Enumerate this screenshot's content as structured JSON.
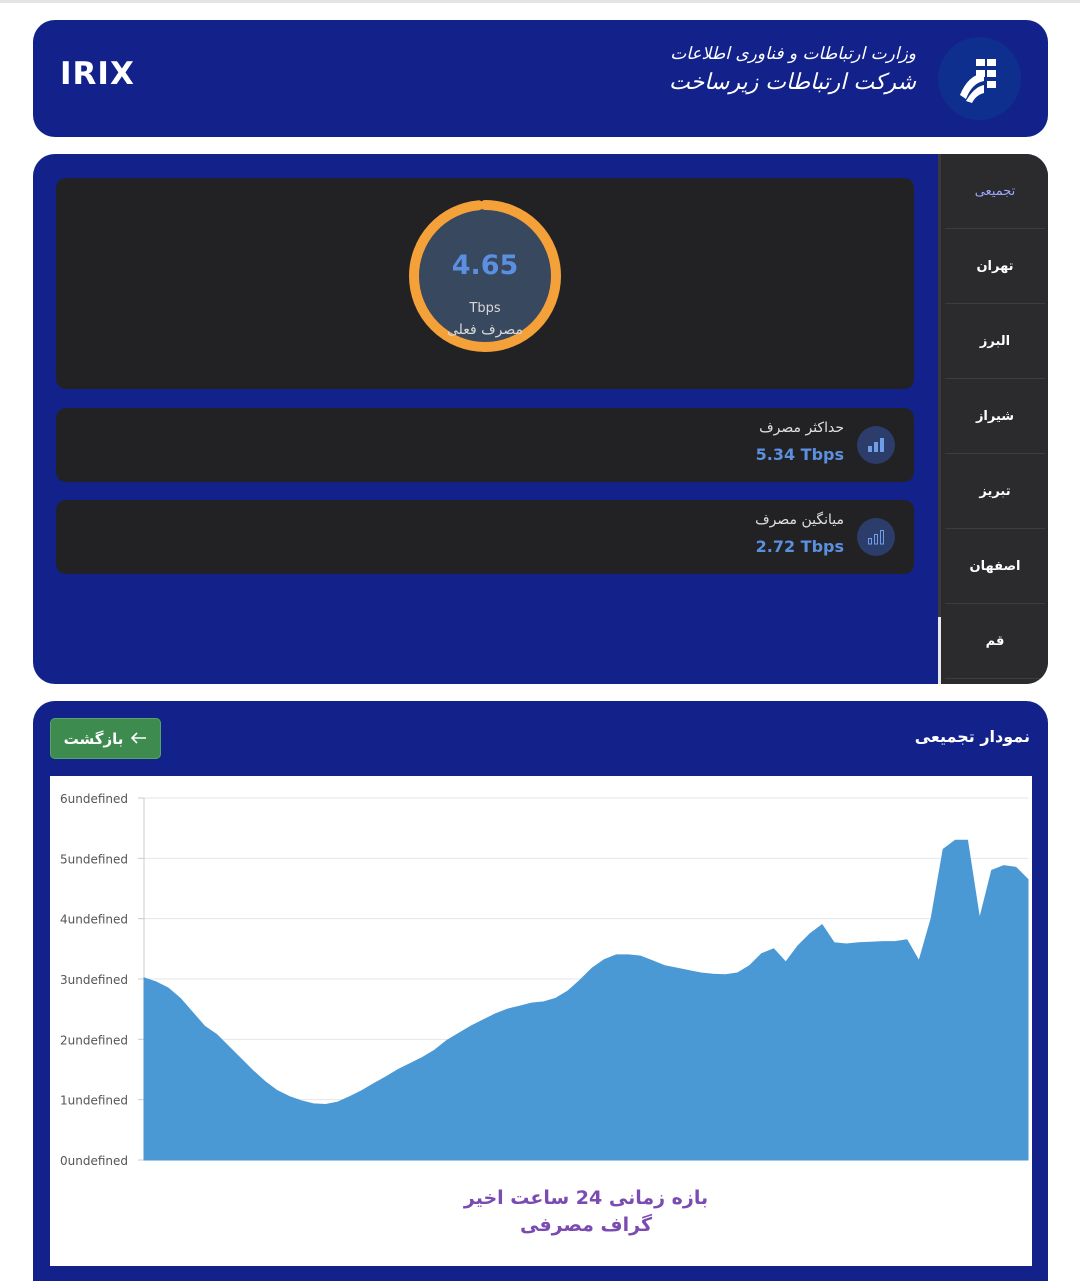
{
  "header": {
    "brand": "IRIX",
    "org_line1": "وزارت ارتباطات و فناوری اطلاعات",
    "org_line2": "شرکت ارتباطات زیرساخت",
    "logo_icon": "tic-logo-icon"
  },
  "sidebar": {
    "items": [
      {
        "label": "تجمیعی",
        "active": true
      },
      {
        "label": "تهران",
        "active": false
      },
      {
        "label": "البرز",
        "active": false
      },
      {
        "label": "شیراز",
        "active": false
      },
      {
        "label": "تبریز",
        "active": false
      },
      {
        "label": "اصفهان",
        "active": false
      },
      {
        "label": "قم",
        "active": false
      }
    ]
  },
  "gauge": {
    "value": "4.65",
    "unit": "Tbps",
    "label": "مصرف فعلی",
    "color": "#f5a13a"
  },
  "stats": {
    "max": {
      "title": "حداکثر مصرف",
      "value": "5.34 Tbps",
      "icon": "bar-chart-icon"
    },
    "avg": {
      "title": "میانگین مصرف",
      "value": "2.72 Tbps",
      "icon": "bar-chart-outline-icon"
    }
  },
  "chart_panel": {
    "title": "نمودار تجمیعی",
    "back_label": "بازگشت",
    "back_icon": "arrow-left-icon",
    "back_color": "#3d8b4e"
  },
  "chart_data": {
    "type": "area",
    "title_line1": "بازه زمانی 24 ساعت اخیر",
    "title_line2": "گراف مصرفی",
    "ylim": [
      0,
      6
    ],
    "yticks": [
      "0undefined",
      "1undefined",
      "2undefined",
      "3undefined",
      "4undefined",
      "5undefined",
      "6undefined"
    ],
    "xlabel": "",
    "ylabel": "",
    "grid": true,
    "color": "#4a99d4",
    "values": [
      3.02,
      2.95,
      2.85,
      2.68,
      2.45,
      2.22,
      2.08,
      1.88,
      1.68,
      1.48,
      1.3,
      1.15,
      1.05,
      0.98,
      0.93,
      0.92,
      0.96,
      1.05,
      1.15,
      1.27,
      1.38,
      1.5,
      1.6,
      1.7,
      1.82,
      1.98,
      2.1,
      2.22,
      2.32,
      2.42,
      2.5,
      2.55,
      2.6,
      2.62,
      2.68,
      2.8,
      2.98,
      3.18,
      3.32,
      3.4,
      3.4,
      3.38,
      3.3,
      3.22,
      3.18,
      3.14,
      3.1,
      3.08,
      3.07,
      3.1,
      3.22,
      3.42,
      3.5,
      3.28,
      3.55,
      3.75,
      3.9,
      3.6,
      3.58,
      3.6,
      3.61,
      3.62,
      3.62,
      3.65,
      3.3,
      4.0,
      5.15,
      5.3,
      5.3,
      4.0,
      4.8,
      4.88,
      4.85,
      4.65
    ]
  }
}
